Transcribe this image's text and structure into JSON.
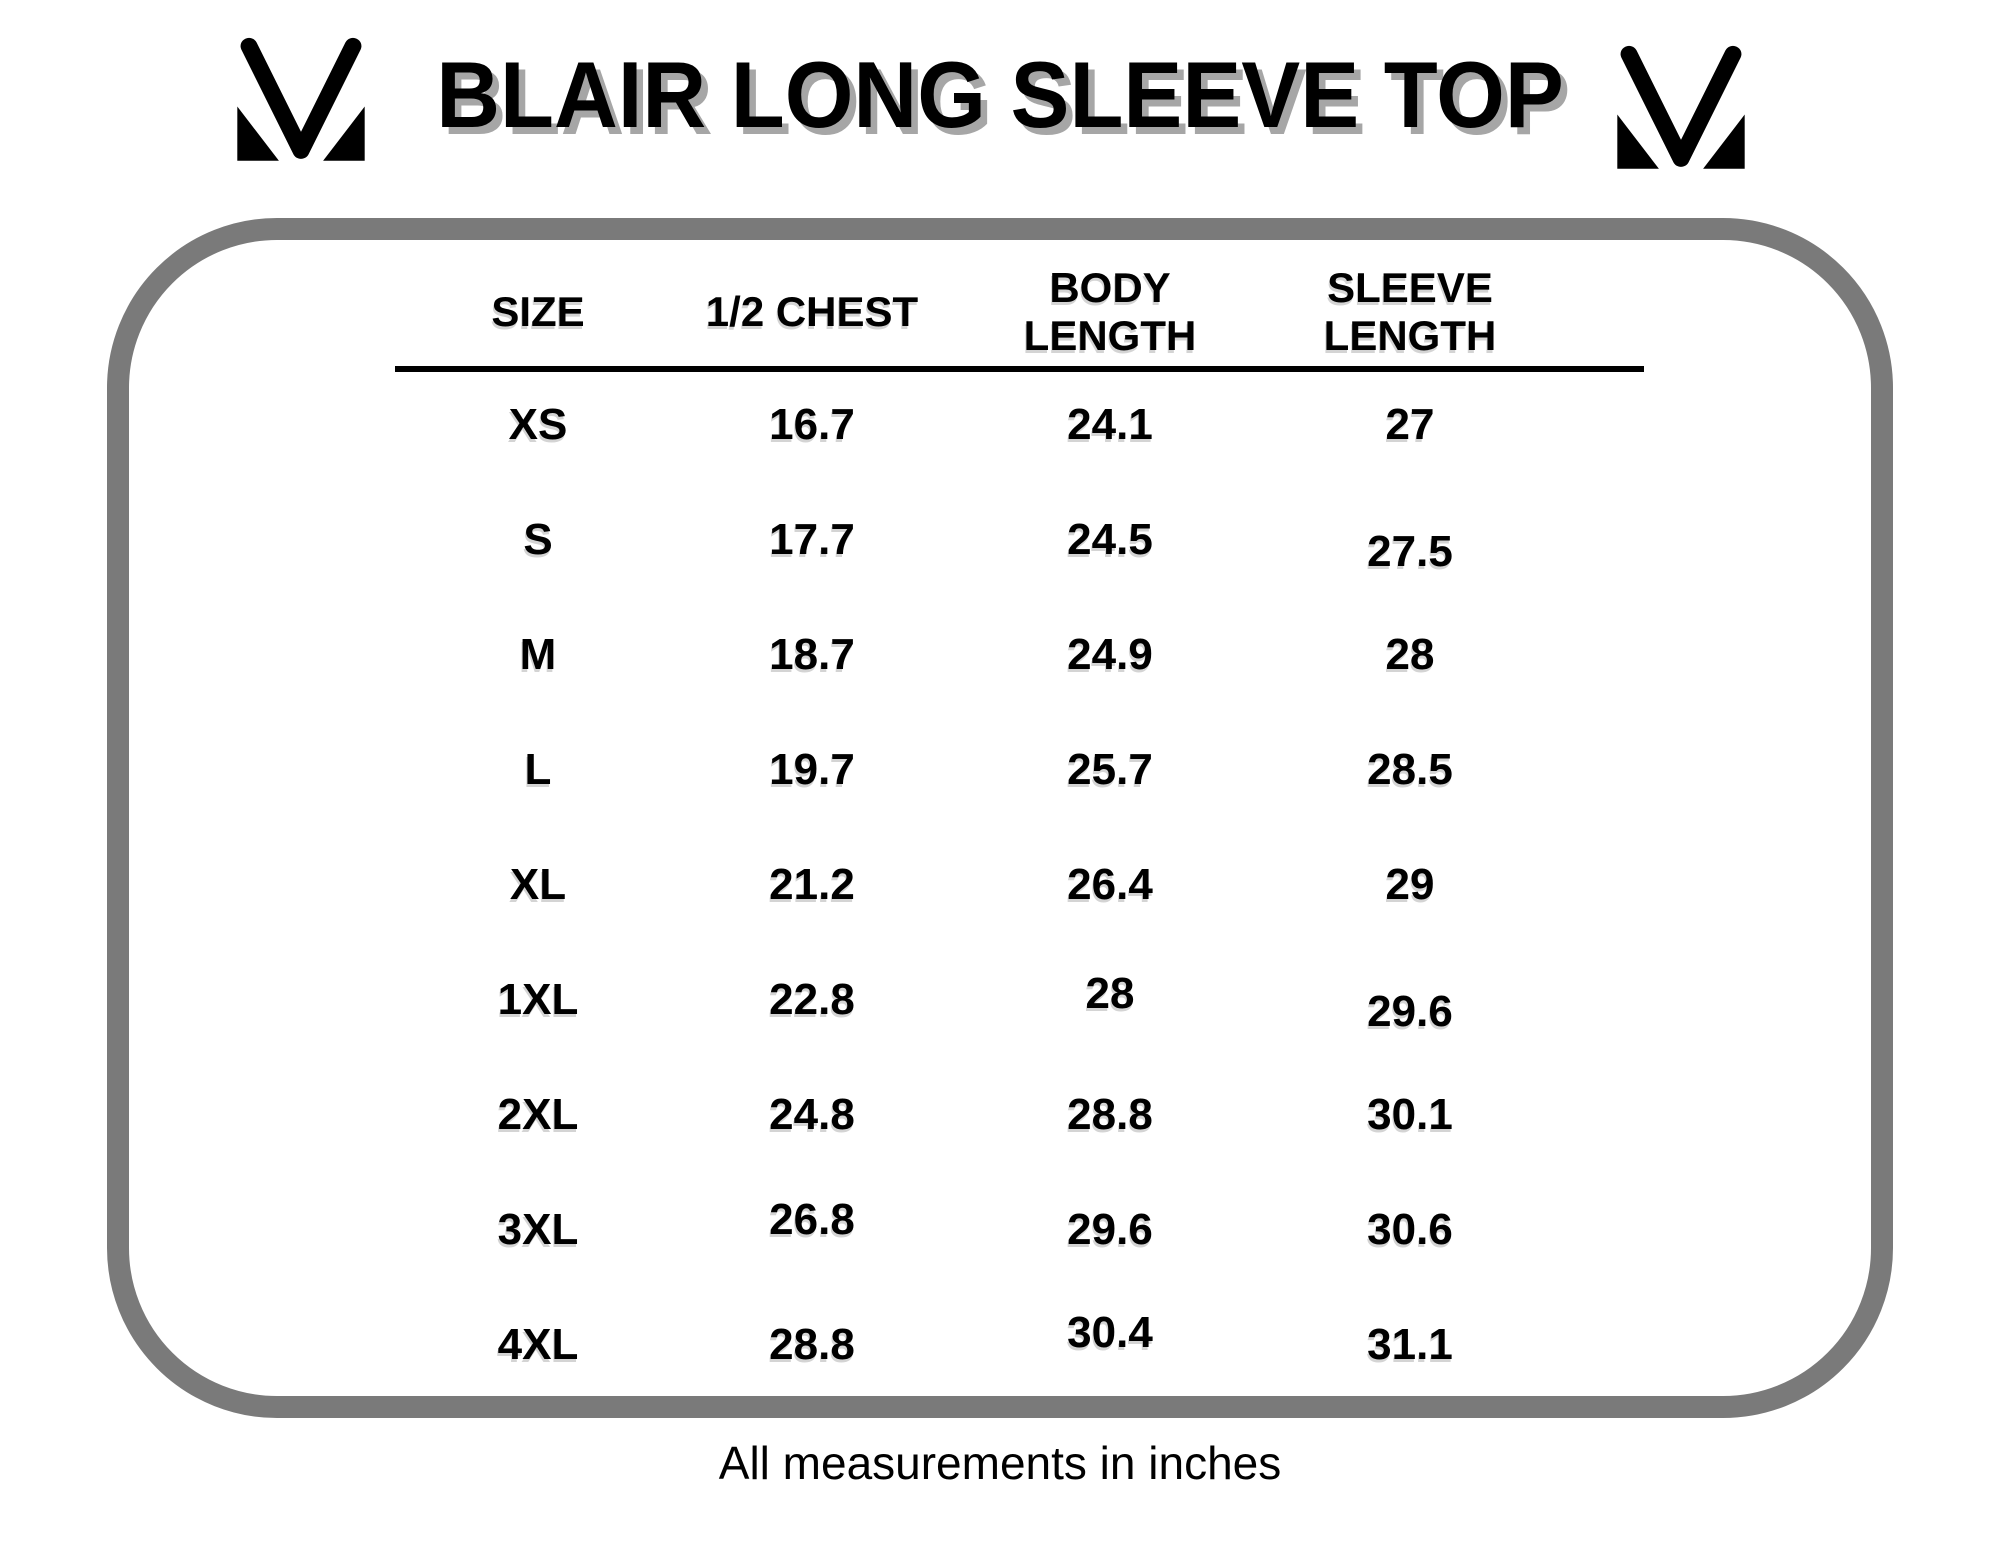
{
  "title": "BLAIR LONG SLEEVE TOP",
  "footnote": "All measurements in inches",
  "logos": {
    "left": "brand-m-logo",
    "right": "brand-m-logo"
  },
  "colors": {
    "background": "#ffffff",
    "text": "#000000",
    "frame_border": "#7a7a7a",
    "title_shadow": "#a6a6a6"
  },
  "table": {
    "columns": [
      "SIZE",
      "1/2 CHEST",
      "BODY\nLENGTH",
      "SLEEVE\nLENGTH"
    ],
    "rows": [
      [
        "XS",
        "16.7",
        "24.1",
        "27"
      ],
      [
        "S",
        "17.7",
        "24.5",
        "27.5"
      ],
      [
        "M",
        "18.7",
        "24.9",
        "28"
      ],
      [
        "L",
        "19.7",
        "25.7",
        "28.5"
      ],
      [
        "XL",
        "21.2",
        "26.4",
        "29"
      ],
      [
        "1XL",
        "22.8",
        "28",
        "29.6"
      ],
      [
        "2XL",
        "24.8",
        "28.8",
        "30.1"
      ],
      [
        "3XL",
        "26.8",
        "29.6",
        "30.6"
      ],
      [
        "4XL",
        "28.8",
        "30.4",
        "31.1"
      ]
    ],
    "units": "inches"
  }
}
